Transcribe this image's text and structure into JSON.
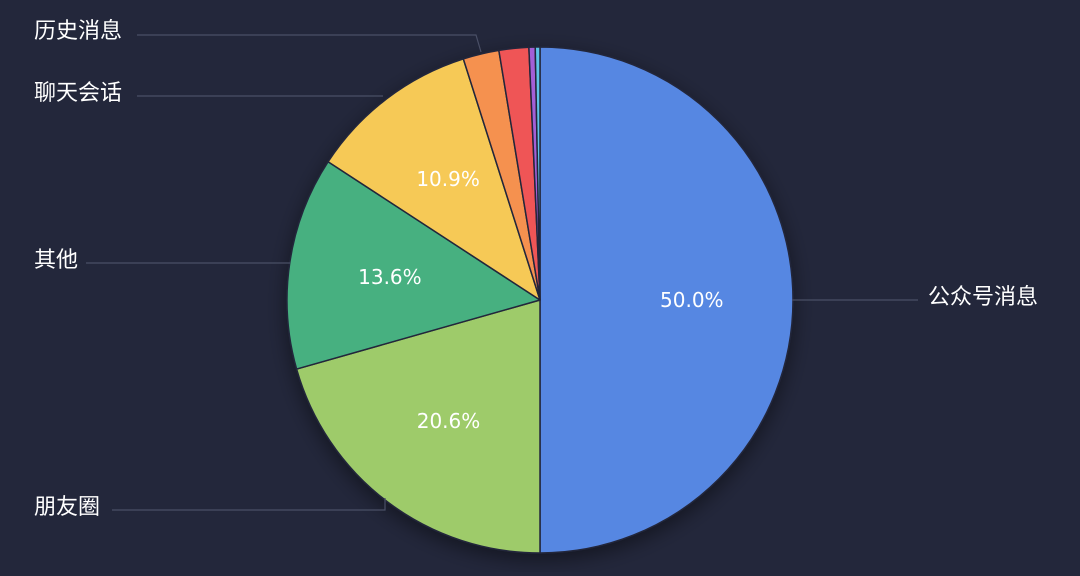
{
  "chart_data": {
    "type": "pie",
    "background": "#23273b",
    "slices": [
      {
        "label": "公众号消息",
        "value": 50.0,
        "value_label": "50.0%",
        "color": "#5787e2"
      },
      {
        "label": "朋友圈",
        "value": 20.6,
        "value_label": "20.6%",
        "color": "#9ecb6a"
      },
      {
        "label": "其他",
        "value": 13.6,
        "value_label": "13.6%",
        "color": "#47b080"
      },
      {
        "label": "聊天会话",
        "value": 10.9,
        "value_label": "10.9%",
        "color": "#f6c957"
      },
      {
        "label": "",
        "value": 2.3,
        "value_label": "",
        "color": "#f5914f"
      },
      {
        "label": "历史消息",
        "value": 1.9,
        "value_label": "",
        "color": "#ef5457"
      },
      {
        "label": "",
        "value": 0.4,
        "value_label": "",
        "color": "#a35fd6"
      },
      {
        "label": "",
        "value": 0.3,
        "value_label": "",
        "color": "#5dc3e8"
      }
    ]
  }
}
